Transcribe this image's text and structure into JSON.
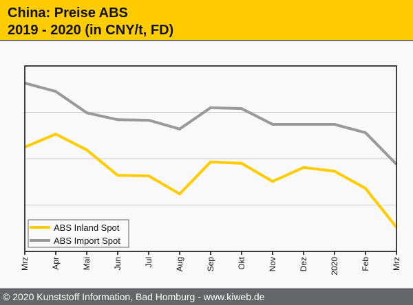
{
  "header": {
    "title_line1": "China: Preise ABS",
    "title_line2": "2019 - 2020 (in CNY/t, FD)"
  },
  "footer": {
    "text": "© 2020 Kunststoff Information, Bad Homburg - www.kiweb.de"
  },
  "chart_data": {
    "type": "line",
    "title": "China: Preise ABS 2019 - 2020 (in CNY/t, FD)",
    "xlabel": "",
    "ylabel": "",
    "y_units_note": "relative (no y-axis labels shown); gridlines at 1, 2, 3",
    "ylim": [
      0,
      4
    ],
    "grid": true,
    "legend_position": "bottom-left",
    "categories": [
      "Mrz",
      "Apr",
      "Mai",
      "Jun",
      "Jul",
      "Aug",
      "Sep",
      "Okt",
      "Nov",
      "Dez",
      "2020",
      "Feb",
      "Mrz"
    ],
    "series": [
      {
        "name": "ABS Inland Spot",
        "color": "#ffcc00",
        "values": [
          2.25,
          2.53,
          2.19,
          1.64,
          1.63,
          1.24,
          1.93,
          1.9,
          1.51,
          1.81,
          1.73,
          1.36,
          0.52
        ]
      },
      {
        "name": "ABS Import Spot",
        "color": "#999999",
        "values": [
          3.63,
          3.45,
          2.99,
          2.84,
          2.83,
          2.64,
          3.1,
          3.08,
          2.74,
          2.74,
          2.74,
          2.56,
          1.88
        ]
      }
    ],
    "gridlines": [
      1,
      2,
      3
    ]
  }
}
